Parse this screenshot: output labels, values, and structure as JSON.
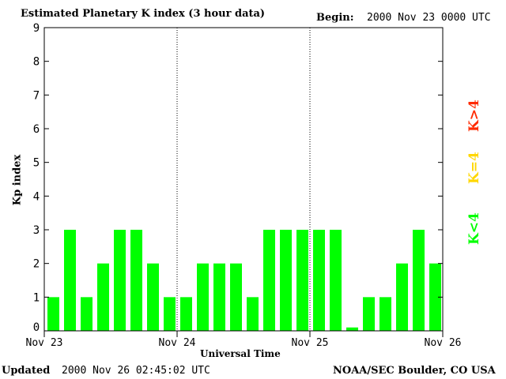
{
  "header": {
    "title": "Estimated Planetary K index (3 hour data)",
    "begin_label": "Begin:",
    "begin_value": "2000 Nov 23 0000 UTC"
  },
  "footer": {
    "updated_label": "Updated",
    "updated_value": "2000 Nov 26 02:45:02 UTC",
    "credit": "NOAA/SEC Boulder, CO USA"
  },
  "legend": {
    "items": [
      {
        "label": "K<4",
        "color": "#00ff00"
      },
      {
        "label": "K=4",
        "color": "#ffd700"
      },
      {
        "label": "K>4",
        "color": "#ff2a00"
      }
    ]
  },
  "chart_data": {
    "type": "bar",
    "title": "Estimated Planetary K index (3 hour data)",
    "xlabel": "Universal Time",
    "ylabel": "Kp index",
    "ylim": [
      0,
      9
    ],
    "yticks": [
      "0",
      "1",
      "2",
      "3",
      "4",
      "5",
      "6",
      "7",
      "8",
      "9"
    ],
    "xticks": [
      "Nov 23",
      "Nov 24",
      "Nov 25",
      "Nov 26"
    ],
    "day_dividers": [
      "Nov 24",
      "Nov 25"
    ],
    "bar_color": "#00ff00",
    "values": [
      1,
      3,
      1,
      2,
      3,
      3,
      2,
      1,
      1,
      2,
      2,
      2,
      1,
      3,
      3,
      3,
      3,
      3,
      0.1,
      1,
      1,
      2,
      3,
      2
    ]
  }
}
